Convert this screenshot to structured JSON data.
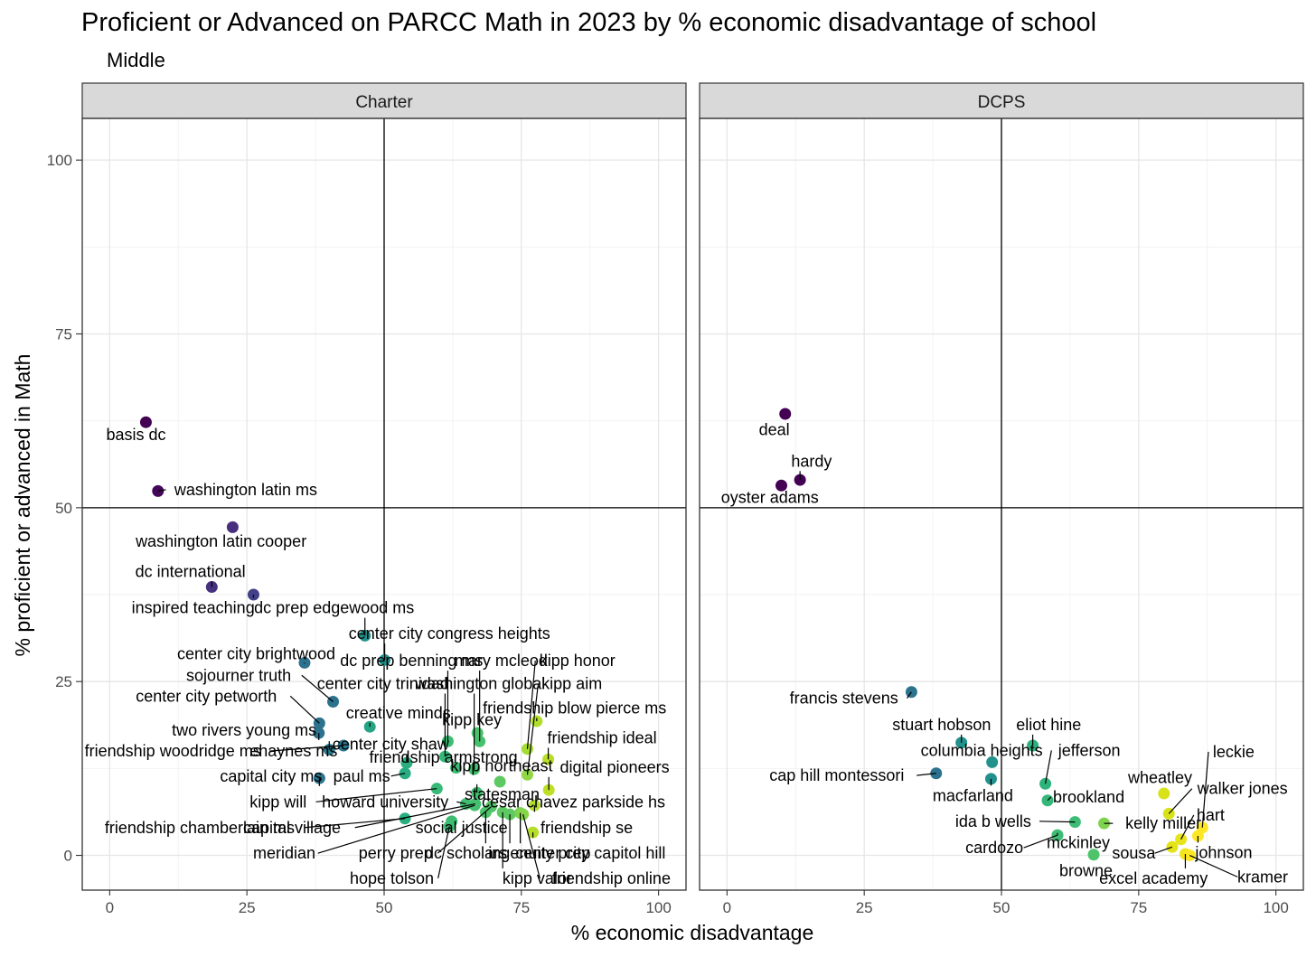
{
  "chart_data": {
    "type": "scatter",
    "title": "Proficient or Advanced on PARCC Math in 2023 by % economic disadvantage of school",
    "subtitle": "Middle",
    "xlabel": "% economic disadvantage",
    "ylabel": "% proficient or advanced in Math",
    "xlim": [
      -5,
      105
    ],
    "ylim": [
      -5,
      106
    ],
    "xticks": [
      0,
      25,
      50,
      75,
      100
    ],
    "yticks": [
      0,
      25,
      50,
      75,
      100
    ],
    "xtick_labels": [
      "0",
      "25",
      "50",
      "75",
      "100"
    ],
    "ytick_labels": [
      "0",
      "25",
      "50",
      "75",
      "100"
    ],
    "reference_lines": {
      "x": 50,
      "y": 50
    },
    "grid": true,
    "color_encoding": "viridis by % economic disadvantage (not shown in a legend)",
    "panels": [
      {
        "name": "Charter",
        "points": [
          {
            "label": "basis dc",
            "x": 6.6,
            "y": 62.3,
            "color": "#440154",
            "lx": 4.8,
            "ly": 60.5
          },
          {
            "label": "washington latin ms",
            "x": 8.8,
            "y": 52.4,
            "color": "#45065a",
            "lx": 24.8,
            "ly": 52.6
          },
          {
            "label": "washington latin cooper",
            "x": 22.4,
            "y": 47.2,
            "color": "#472f7d",
            "lx": 20.3,
            "ly": 45.2
          },
          {
            "label": "dc international",
            "x": 18.6,
            "y": 38.6,
            "color": "#46317e",
            "lx": 14.7,
            "ly": 40.8
          },
          {
            "label": "inspired teaching",
            "x": 26.2,
            "y": 37.5,
            "color": "#424086",
            "lx": 15.2,
            "ly": 35.6
          },
          {
            "label": "dc prep edgewood ms",
            "x": 46.5,
            "y": 31.6,
            "color": "#21918c",
            "lx": 40.9,
            "ly": 35.6
          },
          {
            "label": "center city congress heights",
            "x": 50.1,
            "y": 28.1,
            "color": "#21908d",
            "lx": 61.9,
            "ly": 31.9
          },
          {
            "label": "center city brightwood",
            "x": 35.5,
            "y": 27.7,
            "color": "#2c728e",
            "lx": 26.7,
            "ly": 29.0
          },
          {
            "label": "dc prep benning ms",
            "x": 61.6,
            "y": 16.4,
            "color": "#3dbc74",
            "lx": 55.0,
            "ly": 28.0
          },
          {
            "label": "mary mcleod",
            "x": 67.4,
            "y": 16.4,
            "color": "#48c16e",
            "lx": 71.3,
            "ly": 28.0
          },
          {
            "label": "kipp honor",
            "x": 76.1,
            "y": 15.3,
            "color": "#a5db36",
            "lx": 85.2,
            "ly": 28.0
          },
          {
            "label": "sojourner truth",
            "x": 40.7,
            "y": 22.1,
            "color": "#2c728e",
            "lx": 23.5,
            "ly": 25.9
          },
          {
            "label": "center city trinidad",
            "x": 61.1,
            "y": 14.2,
            "color": "#35b779",
            "lx": 49.8,
            "ly": 24.7
          },
          {
            "label": "washington global",
            "x": 66.4,
            "y": 12.4,
            "color": "#44bf70",
            "lx": 67.5,
            "ly": 24.7
          },
          {
            "label": "kipp aim",
            "x": 76.1,
            "y": 11.6,
            "color": "#90d743",
            "lx": 84.2,
            "ly": 24.7
          },
          {
            "label": "center city petworth",
            "x": 38.2,
            "y": 19.0,
            "color": "#2c728e",
            "lx": 17.6,
            "ly": 22.9
          },
          {
            "label": "creative minds",
            "x": 47.4,
            "y": 18.5,
            "color": "#25a584",
            "lx": 52.6,
            "ly": 20.5
          },
          {
            "label": "friendship blow pierce ms",
            "x": 77.8,
            "y": 19.3,
            "color": "#b2dd2d",
            "lx": 84.7,
            "ly": 21.2
          },
          {
            "label": "kipp key",
            "x": 67.0,
            "y": 17.6,
            "color": "#4ac16d",
            "lx": 66.0,
            "ly": 19.5
          },
          {
            "label": "two rivers young ms",
            "x": 38.1,
            "y": 17.6,
            "color": "#2c728e",
            "lx": 24.5,
            "ly": 18.0
          },
          {
            "label": "friendship ideal",
            "x": 79.9,
            "y": 13.8,
            "color": "#b8de29",
            "lx": 89.7,
            "ly": 16.9
          },
          {
            "label": "center city shaw",
            "x": 54.1,
            "y": 13.3,
            "color": "#2ab07f",
            "lx": 51.2,
            "ly": 16.0
          },
          {
            "label": "friendship woodridge ms",
            "x": 42.6,
            "y": 15.8,
            "color": "#2a788e",
            "lx": 11.5,
            "ly": 15.0
          },
          {
            "label": "ehaynes ms",
            "x": 40.0,
            "y": 15.2,
            "color": "#297b8e",
            "lx": 33.5,
            "ly": 15.0
          },
          {
            "label": "friendship armstrong",
            "x": 63.1,
            "y": 12.6,
            "color": "#3dbc74",
            "lx": 60.8,
            "ly": 14.1
          },
          {
            "label": "kipp northeast",
            "x": 71.1,
            "y": 10.6,
            "color": "#5ec962",
            "lx": 71.4,
            "ly": 12.9
          },
          {
            "label": "digital pioneers",
            "x": 80.0,
            "y": 9.4,
            "color": "#bddf26",
            "lx": 92.0,
            "ly": 12.7
          },
          {
            "label": "capital city ms",
            "x": 38.2,
            "y": 11.1,
            "color": "#2c728e",
            "lx": 29.4,
            "ly": 11.4
          },
          {
            "label": "paul ms",
            "x": 53.8,
            "y": 11.8,
            "color": "#27ad81",
            "lx": 45.9,
            "ly": 11.4
          },
          {
            "label": "statesman",
            "x": 66.9,
            "y": 9.0,
            "color": "#44bf70",
            "lx": 71.5,
            "ly": 8.8
          },
          {
            "label": "kipp will",
            "x": 59.6,
            "y": 9.6,
            "color": "#38b977",
            "lx": 30.7,
            "ly": 7.7
          },
          {
            "label": "howard university",
            "x": 64.9,
            "y": 7.4,
            "color": "#42be71",
            "lx": 50.2,
            "ly": 7.7
          },
          {
            "label": "cesar chavez parkside hs",
            "x": 77.4,
            "y": 7.2,
            "color": "#b5de2b",
            "lx": 84.5,
            "ly": 7.7
          },
          {
            "label": "friendship chamberlain ms",
            "x": 53.8,
            "y": 5.3,
            "color": "#29af7f",
            "lx": 16.4,
            "ly": 4.0
          },
          {
            "label": "capital village",
            "x": 66.6,
            "y": 7.4,
            "color": "#44bf70",
            "lx": 33.2,
            "ly": 4.0
          },
          {
            "label": "social justice",
            "x": 62.3,
            "y": 4.9,
            "color": "#3dbc74",
            "lx": 64.1,
            "ly": 4.0
          },
          {
            "label": "friendship se",
            "x": 77.1,
            "y": 3.3,
            "color": "#b5de2b",
            "lx": 86.9,
            "ly": 4.0
          },
          {
            "label": "meridian",
            "x": 66.5,
            "y": 7.2,
            "color": "#44bf70",
            "lx": 31.8,
            "ly": 0.3
          },
          {
            "label": "perry prep",
            "x": 69.5,
            "y": 7.0,
            "color": "#52c569",
            "lx": 52.1,
            "ly": 0.3
          },
          {
            "label": "dc scholars",
            "x": 68.5,
            "y": 6.2,
            "color": "#4ec36b",
            "lx": 64.9,
            "ly": 0.3
          },
          {
            "label": "ingenuity prep",
            "x": 72.9,
            "y": 5.9,
            "color": "#5ec962",
            "lx": 78.3,
            "ly": 0.3
          },
          {
            "label": "center city capitol hill",
            "x": 74.8,
            "y": 6.1,
            "color": "#7ad151",
            "lx": 87.6,
            "ly": 0.3
          },
          {
            "label": "hope tolson",
            "x": 61.9,
            "y": 4.2,
            "color": "#3dbc74",
            "lx": 51.4,
            "ly": -3.3
          },
          {
            "label": "kipp valor",
            "x": 71.6,
            "y": 6.2,
            "color": "#5ec962",
            "lx": 77.9,
            "ly": -3.3
          },
          {
            "label": "friendship online",
            "x": 75.3,
            "y": 5.9,
            "color": "#86d549",
            "lx": 91.4,
            "ly": -3.3
          }
        ]
      },
      {
        "name": "DCPS",
        "points": [
          {
            "label": "deal",
            "x": 10.6,
            "y": 63.5,
            "color": "#440154",
            "lx": 8.6,
            "ly": 61.2
          },
          {
            "label": "hardy",
            "x": 13.3,
            "y": 54.0,
            "color": "#440154",
            "lx": 15.4,
            "ly": 56.7
          },
          {
            "label": "oyster adams",
            "x": 9.9,
            "y": 53.2,
            "color": "#440154",
            "lx": 7.8,
            "ly": 51.5
          },
          {
            "label": "francis stevens",
            "x": 33.6,
            "y": 23.5,
            "color": "#2c728e",
            "lx": 21.3,
            "ly": 22.6
          },
          {
            "label": "stuart hobson",
            "x": 42.7,
            "y": 16.2,
            "color": "#21918c",
            "lx": 39.1,
            "ly": 18.8
          },
          {
            "label": "eliot hine",
            "x": 55.7,
            "y": 15.8,
            "color": "#2ab07f",
            "lx": 58.6,
            "ly": 18.8
          },
          {
            "label": "columbia heights",
            "x": 48.3,
            "y": 13.4,
            "color": "#21918c",
            "lx": 46.4,
            "ly": 15.1
          },
          {
            "label": "jefferson",
            "x": 58.0,
            "y": 10.3,
            "color": "#2eb37c",
            "lx": 66.0,
            "ly": 15.1
          },
          {
            "label": "cap hill montessori",
            "x": 38.1,
            "y": 11.8,
            "color": "#2c728e",
            "lx": 20.0,
            "ly": 11.5
          },
          {
            "label": "macfarland",
            "x": 48.1,
            "y": 11.0,
            "color": "#21918c",
            "lx": 44.8,
            "ly": 8.6
          },
          {
            "label": "brookland",
            "x": 58.4,
            "y": 7.9,
            "color": "#35b779",
            "lx": 65.9,
            "ly": 8.4
          },
          {
            "label": "ida b wells",
            "x": 63.4,
            "y": 4.8,
            "color": "#3dbc74",
            "lx": 48.5,
            "ly": 4.9
          },
          {
            "label": "kelly miller",
            "x": 68.7,
            "y": 4.6,
            "color": "#7fd34e",
            "lx": 79.5,
            "ly": 4.6
          },
          {
            "label": "cardozo",
            "x": 60.2,
            "y": 2.9,
            "color": "#3dbc74",
            "lx": 48.7,
            "ly": 1.1
          },
          {
            "label": "mckinley",
            "x": 60.2,
            "y": 2.9,
            "color": "#3dbc74",
            "lx": 64.0,
            "ly": 1.8
          },
          {
            "label": "browne",
            "x": 66.8,
            "y": 0.1,
            "color": "#4ec36b",
            "lx": 65.4,
            "ly": -2.2
          },
          {
            "label": "leckie",
            "x": 86.6,
            "y": 4.0,
            "color": "#fde725",
            "lx": 92.3,
            "ly": 14.9
          },
          {
            "label": "wheatley",
            "x": 79.6,
            "y": 8.9,
            "color": "#d8e219",
            "lx": 78.9,
            "ly": 11.2
          },
          {
            "label": "walker jones",
            "x": 80.5,
            "y": 6.0,
            "color": "#d8e219",
            "lx": 93.9,
            "ly": 9.6
          },
          {
            "label": "hart",
            "x": 82.7,
            "y": 2.3,
            "color": "#e7e419",
            "lx": 88.1,
            "ly": 5.8
          },
          {
            "label": "sousa",
            "x": 81.1,
            "y": 1.2,
            "color": "#e3e418",
            "lx": 74.1,
            "ly": 0.3
          },
          {
            "label": "johnson",
            "x": 85.8,
            "y": 2.8,
            "color": "#fde725",
            "lx": 90.5,
            "ly": 0.4
          },
          {
            "label": "excel academy",
            "x": 83.5,
            "y": 0.2,
            "color": "#f1e51d",
            "lx": 77.7,
            "ly": -3.3
          },
          {
            "label": "kramer",
            "x": 84.3,
            "y": 0.0,
            "color": "#fde725",
            "lx": 97.6,
            "ly": -3.1
          }
        ]
      }
    ]
  }
}
